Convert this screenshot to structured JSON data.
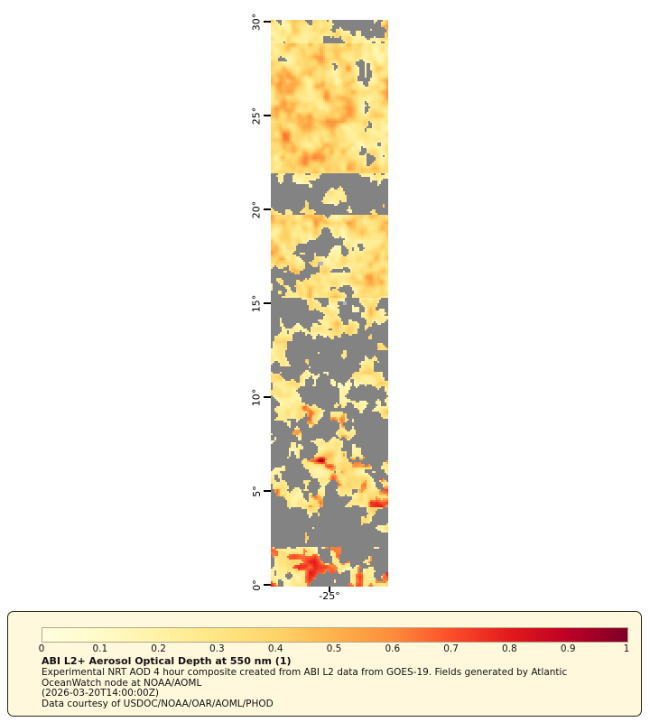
{
  "map": {
    "lat_ticks": [
      "30°",
      "25°",
      "20°",
      "15°",
      "10°",
      "5°",
      "0°"
    ],
    "lon_tick": "-25°",
    "no_data_color": "#838383"
  },
  "legend": {
    "panel_bg": "#FFF8DC",
    "ticks": [
      "0",
      "0.1",
      "0.2",
      "0.3",
      "0.4",
      "0.5",
      "0.6",
      "0.7",
      "0.8",
      "0.9",
      "1"
    ],
    "palette": [
      "#ffffe0",
      "#fffbc8",
      "#fff3a6",
      "#ffe684",
      "#fed46a",
      "#feb24c",
      "#fd8d3c",
      "#fc4e2a",
      "#e31a1c",
      "#bd0026",
      "#800026"
    ],
    "title": "ABI L2+ Aerosol Optical Depth at 550 nm (1)",
    "description_line1": "Experimental NRT AOD 4 hour composite created from ABI L2 data from GOES-19. Fields generated by Atlantic",
    "description_line2": "OceanWatch node at NOAA/AOML",
    "timestamp": "(2026-03-20T14:00:00Z)",
    "courtesy": "Data courtesy of USDOC/NOAA/OAR/AOML/PHOD"
  },
  "chart_data": {
    "type": "heatmap",
    "title": "ABI L2+ Aerosol Optical Depth at 550 nm (1)",
    "colorbar": {
      "min": 0,
      "max": 1,
      "tick_values": [
        0,
        0.1,
        0.2,
        0.3,
        0.4,
        0.5,
        0.6,
        0.7,
        0.8,
        0.9,
        1
      ],
      "palette": [
        "#ffffe0",
        "#fed46a",
        "#fd8d3c",
        "#e31a1c",
        "#800026"
      ]
    },
    "y_axis": {
      "tick_labels": [
        "30°",
        "25°",
        "20°",
        "15°",
        "10°",
        "5°",
        "0°"
      ],
      "range": [
        0,
        30
      ]
    },
    "x_axis": {
      "tick_labels": [
        "-25°"
      ]
    },
    "no_data_color": "#838383",
    "notes_visible_text": [
      "Experimental NRT AOD 4 hour composite created from ABI L2 data from GOES-19. Fields generated by Atlantic OceanWatch node at NOAA/AOML",
      "(2026-03-20T14:00:00Z)",
      "Data courtesy of USDOC/NOAA/OAR/AOML/PHOD"
    ]
  }
}
